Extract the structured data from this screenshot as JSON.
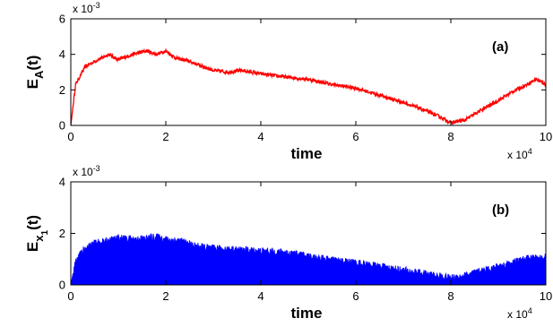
{
  "chart_data": [
    {
      "type": "line",
      "panel_label": "(a)",
      "xlabel": "time",
      "ylabel": {
        "main": "E",
        "sub": "A",
        "suffix": "(t)"
      },
      "y_multiplier": {
        "base": "x 10",
        "exp": "-3"
      },
      "x_multiplier": {
        "base": "x 10",
        "exp": "4"
      },
      "xlim": [
        0,
        10
      ],
      "ylim": [
        0,
        6
      ],
      "xticks": [
        "0",
        "2",
        "4",
        "6",
        "8",
        "10"
      ],
      "yticks": [
        "0",
        "2",
        "4",
        "6"
      ],
      "grid": false,
      "color": "#ff0000",
      "x": [
        0,
        0.1,
        0.3,
        0.5,
        0.8,
        1.0,
        1.3,
        1.6,
        1.8,
        2.0,
        2.2,
        2.5,
        2.8,
        3.0,
        3.3,
        3.6,
        4.0,
        4.3,
        4.6,
        5.0,
        5.5,
        6.0,
        6.5,
        7.0,
        7.5,
        7.8,
        8.0,
        8.3,
        8.6,
        9.0,
        9.3,
        9.6,
        9.8,
        10.0
      ],
      "y": [
        0.0,
        2.3,
        3.3,
        3.6,
        4.0,
        3.7,
        4.0,
        4.2,
        4.0,
        4.2,
        3.8,
        3.6,
        3.3,
        3.1,
        3.0,
        3.1,
        2.9,
        2.8,
        2.7,
        2.6,
        2.3,
        2.1,
        1.7,
        1.3,
        0.8,
        0.45,
        0.15,
        0.3,
        0.8,
        1.4,
        1.9,
        2.3,
        2.6,
        2.3
      ]
    },
    {
      "type": "area",
      "panel_label": "(b)",
      "xlabel": "time",
      "ylabel": {
        "main": "E",
        "sub": "x",
        "subsub": "1",
        "suffix": "(t)"
      },
      "y_multiplier": {
        "base": "x 10",
        "exp": "-3"
      },
      "x_multiplier": {
        "base": "x 10",
        "exp": "4"
      },
      "xlim": [
        0,
        10
      ],
      "ylim": [
        0,
        4
      ],
      "xticks": [
        "0",
        "2",
        "4",
        "6",
        "8",
        "10"
      ],
      "yticks": [
        "0",
        "2",
        "4"
      ],
      "grid": false,
      "color": "#0000ff",
      "x": [
        0,
        0.1,
        0.3,
        0.5,
        0.8,
        1.0,
        1.3,
        1.6,
        1.8,
        2.0,
        2.3,
        2.6,
        3.0,
        3.5,
        4.0,
        4.5,
        5.0,
        5.5,
        6.0,
        6.5,
        7.0,
        7.5,
        8.0,
        8.3,
        8.6,
        9.0,
        9.3,
        9.6,
        10.0
      ],
      "y": [
        0.0,
        0.9,
        1.4,
        1.6,
        1.7,
        1.8,
        1.75,
        1.8,
        1.85,
        1.75,
        1.7,
        1.5,
        1.4,
        1.35,
        1.3,
        1.25,
        1.1,
        0.95,
        0.85,
        0.7,
        0.55,
        0.4,
        0.25,
        0.35,
        0.5,
        0.7,
        0.85,
        1.0,
        1.05
      ]
    }
  ]
}
